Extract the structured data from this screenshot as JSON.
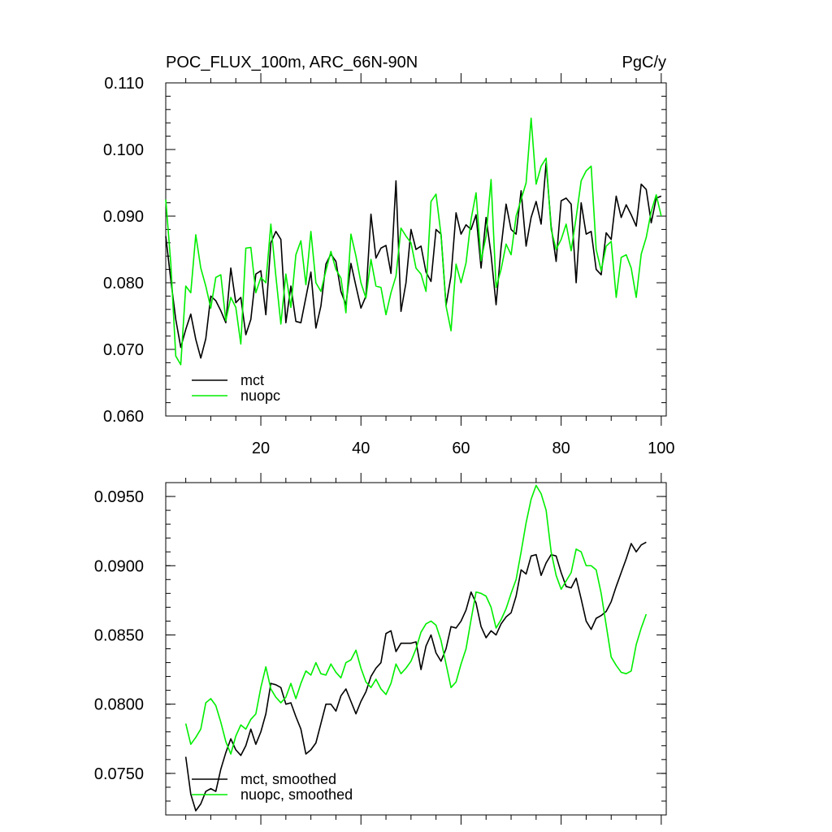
{
  "chart_data": [
    {
      "type": "line",
      "title_left": "POC_FLUX_100m, ARC_66N-90N",
      "title_right": "PgC/y",
      "xlabel": "",
      "ylabel": "",
      "xlim": [
        1,
        101
      ],
      "ylim": [
        0.06,
        0.11
      ],
      "xticks": [
        20,
        40,
        60,
        80,
        100
      ],
      "xtick_labels": [
        "20",
        "40",
        "60",
        "80",
        "100"
      ],
      "yticks": [
        0.06,
        0.07,
        0.08,
        0.09,
        0.1,
        0.11
      ],
      "ytick_labels": [
        "0.060",
        "0.070",
        "0.080",
        "0.090",
        "0.100",
        "0.110"
      ],
      "legend": "bottom-left",
      "series": [
        {
          "name": "mct",
          "color": "#000000",
          "x_start": 1,
          "values": [
            0.087,
            0.0805,
            0.0745,
            0.0703,
            0.073,
            0.0753,
            0.0715,
            0.0687,
            0.0716,
            0.078,
            0.0773,
            0.0758,
            0.074,
            0.0822,
            0.077,
            0.0778,
            0.0722,
            0.0745,
            0.0813,
            0.0818,
            0.0752,
            0.086,
            0.0877,
            0.0865,
            0.074,
            0.0795,
            0.0742,
            0.074,
            0.0778,
            0.0816,
            0.0732,
            0.0765,
            0.0828,
            0.0843,
            0.0832,
            0.0787,
            0.0767,
            0.0829,
            0.0795,
            0.0762,
            0.078,
            0.0903,
            0.0837,
            0.0852,
            0.0856,
            0.0814,
            0.0953,
            0.0757,
            0.08,
            0.088,
            0.085,
            0.0855,
            0.0816,
            0.0802,
            0.088,
            0.0873,
            0.0766,
            0.081,
            0.0905,
            0.0873,
            0.0887,
            0.088,
            0.0902,
            0.0822,
            0.0898,
            0.0842,
            0.0767,
            0.0853,
            0.0918,
            0.088,
            0.0873,
            0.0938,
            0.0855,
            0.0898,
            0.0922,
            0.0888,
            0.098,
            0.0885,
            0.0832,
            0.0923,
            0.0927,
            0.0918,
            0.08,
            0.092,
            0.0873,
            0.0877,
            0.082,
            0.0812,
            0.0875,
            0.0865,
            0.093,
            0.0898,
            0.0917,
            0.0902,
            0.0885,
            0.0948,
            0.094,
            0.089,
            0.0927,
            0.093
          ]
        },
        {
          "name": "nuopc",
          "color": "#00ee00",
          "x_start": 1,
          "values": [
            0.0925,
            0.083,
            0.069,
            0.0677,
            0.0795,
            0.0785,
            0.0872,
            0.0822,
            0.0795,
            0.0762,
            0.0808,
            0.0812,
            0.0743,
            0.0778,
            0.0763,
            0.0708,
            0.0852,
            0.0853,
            0.0785,
            0.0808,
            0.08,
            0.0888,
            0.081,
            0.0738,
            0.0813,
            0.0763,
            0.0842,
            0.0863,
            0.0797,
            0.0877,
            0.08,
            0.0787,
            0.0818,
            0.0847,
            0.082,
            0.0807,
            0.0755,
            0.0873,
            0.084,
            0.08,
            0.0777,
            0.0835,
            0.0795,
            0.0793,
            0.0752,
            0.0785,
            0.081,
            0.0882,
            0.087,
            0.086,
            0.0822,
            0.0813,
            0.0787,
            0.0922,
            0.0933,
            0.0872,
            0.0765,
            0.0728,
            0.0828,
            0.08,
            0.083,
            0.0895,
            0.0935,
            0.0833,
            0.087,
            0.0955,
            0.0793,
            0.082,
            0.0858,
            0.0842,
            0.09,
            0.0925,
            0.095,
            0.1047,
            0.0948,
            0.0975,
            0.0987,
            0.088,
            0.085,
            0.0865,
            0.0888,
            0.0848,
            0.0898,
            0.0953,
            0.0968,
            0.0975,
            0.085,
            0.0818,
            0.0855,
            0.0862,
            0.0778,
            0.0838,
            0.0842,
            0.0822,
            0.0778,
            0.0843,
            0.0868,
            0.0907,
            0.0932,
            0.09
          ]
        }
      ]
    },
    {
      "type": "line",
      "title_left": "",
      "title_right": "",
      "xlabel": "",
      "ylabel": "",
      "xlim": [
        1,
        101
      ],
      "ylim": [
        0.072,
        0.096
      ],
      "xticks": [
        20,
        40,
        60,
        80,
        100
      ],
      "xtick_labels": [],
      "yticks": [
        0.075,
        0.08,
        0.085,
        0.09,
        0.095
      ],
      "ytick_labels": [
        "0.0750",
        "0.0800",
        "0.0850",
        "0.0900",
        "0.0950"
      ],
      "legend": "bottom-left",
      "series": [
        {
          "name": "mct, smoothed",
          "color": "#000000",
          "x_start": 5,
          "values": [
            0.0762,
            0.0735,
            0.0723,
            0.0728,
            0.0737,
            0.0739,
            0.0737,
            0.0753,
            0.0765,
            0.0775,
            0.0767,
            0.0763,
            0.077,
            0.0782,
            0.0771,
            0.078,
            0.0793,
            0.0815,
            0.0814,
            0.0812,
            0.08,
            0.0801,
            0.0791,
            0.0782,
            0.0764,
            0.0767,
            0.0772,
            0.0786,
            0.08,
            0.08,
            0.0795,
            0.0806,
            0.0811,
            0.0802,
            0.0793,
            0.0802,
            0.0809,
            0.082,
            0.0826,
            0.083,
            0.0851,
            0.0853,
            0.0838,
            0.0844,
            0.0844,
            0.0844,
            0.0845,
            0.0825,
            0.0842,
            0.085,
            0.0837,
            0.0831,
            0.084,
            0.0856,
            0.0855,
            0.086,
            0.0868,
            0.0881,
            0.0873,
            0.0856,
            0.0848,
            0.0853,
            0.085,
            0.0858,
            0.0863,
            0.0866,
            0.0878,
            0.0897,
            0.0894,
            0.0907,
            0.0908,
            0.0893,
            0.0902,
            0.0908,
            0.0907,
            0.0895,
            0.0885,
            0.0884,
            0.0891,
            0.0876,
            0.086,
            0.0854,
            0.0862,
            0.0864,
            0.0867,
            0.0874,
            0.0885,
            0.0895,
            0.0905,
            0.0916,
            0.091,
            0.0915,
            0.0917
          ]
        },
        {
          "name": "nuopc, smoothed",
          "color": "#00ee00",
          "x_start": 5,
          "values": [
            0.0786,
            0.0771,
            0.0776,
            0.0782,
            0.0801,
            0.0804,
            0.0799,
            0.0787,
            0.0773,
            0.0764,
            0.0777,
            0.0785,
            0.0782,
            0.0789,
            0.0793,
            0.0812,
            0.0827,
            0.0811,
            0.0805,
            0.0801,
            0.0805,
            0.0815,
            0.0804,
            0.0815,
            0.0824,
            0.0821,
            0.083,
            0.0822,
            0.0821,
            0.0829,
            0.0823,
            0.0819,
            0.083,
            0.0832,
            0.0839,
            0.0826,
            0.0816,
            0.0812,
            0.0818,
            0.0811,
            0.0807,
            0.0815,
            0.0829,
            0.0822,
            0.0826,
            0.0831,
            0.084,
            0.0852,
            0.0858,
            0.086,
            0.0857,
            0.0846,
            0.0829,
            0.0812,
            0.0816,
            0.0829,
            0.084,
            0.0861,
            0.0881,
            0.088,
            0.0878,
            0.087,
            0.0855,
            0.0861,
            0.0869,
            0.088,
            0.089,
            0.091,
            0.0931,
            0.0948,
            0.0958,
            0.0952,
            0.094,
            0.091,
            0.0893,
            0.0883,
            0.0889,
            0.0895,
            0.0912,
            0.091,
            0.09,
            0.09,
            0.0897,
            0.088,
            0.0857,
            0.0834,
            0.0828,
            0.0823,
            0.0822,
            0.0824,
            0.0843,
            0.0855,
            0.0865
          ]
        }
      ]
    }
  ]
}
